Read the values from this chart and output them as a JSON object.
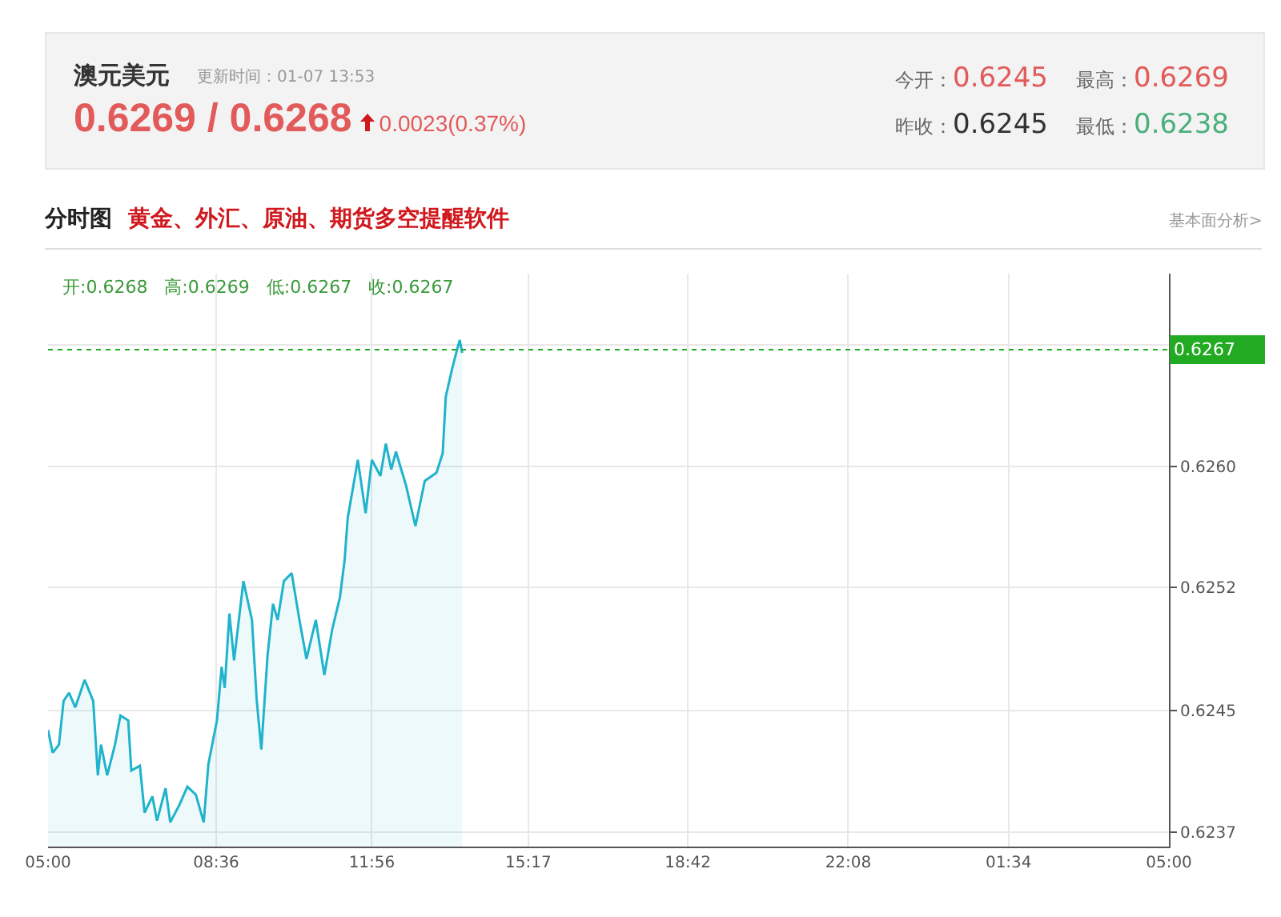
{
  "chart_data": {
    "type": "area",
    "title": "澳元美元",
    "subtitle": "更新时间：01-07 13:53",
    "annotations": [
      "0.6269 / 0.6268",
      "0.0023(0.37%)",
      "今开：0.6245",
      "最高：0.6269",
      "昨收：0.6245",
      "最低：0.6238",
      "分时图",
      "黄金、外汇、原油、期货多空提醒软件",
      "基本面分析>",
      "开:0.6268   高:0.6269   低:0.6267   收:0.6267"
    ],
    "x": [
      "--01-07T05:00",
      "--01-07T05:06",
      "--01-07T05:14",
      "--01-07T05:20",
      "--01-07T05:27",
      "--01-07T05:35",
      "--01-07T05:47",
      "--01-07T05:58",
      "--01-07T06:04",
      "--01-07T06:08",
      "--01-07T06:16",
      "--01-07T06:26",
      "--01-07T06:33",
      "--01-07T06:43",
      "--01-07T06:47",
      "--01-07T06:58",
      "--01-07T07:04",
      "--01-07T07:14",
      "--01-07T07:20",
      "--01-07T07:31",
      "--01-07T07:37",
      "--01-07T07:49",
      "--01-07T07:59",
      "--01-07T08:10",
      "--01-07T08:20",
      "--01-07T08:26",
      "--01-07T08:37",
      "--01-07T08:43",
      "--01-07T08:47",
      "--01-07T08:53",
      "--01-07T08:59",
      "--01-07T09:11",
      "--01-07T09:22",
      "--01-07T09:28",
      "--01-07T09:34",
      "--01-07T09:42",
      "--01-07T09:49",
      "--01-07T09:55",
      "--01-07T10:03",
      "--01-07T10:13",
      "--01-07T10:23",
      "--01-07T10:32",
      "--01-07T10:44",
      "--01-07T10:55",
      "--01-07T11:05",
      "--01-07T11:15",
      "--01-07T11:21",
      "--01-07T11:25",
      "--01-07T11:38",
      "--01-07T11:48",
      "--01-07T11:56",
      "--01-07T12:07",
      "--01-07T12:14",
      "--01-07T12:21",
      "--01-07T12:27",
      "--01-07T12:40",
      "--01-07T12:52",
      "--01-07T13:04",
      "--01-07T13:19",
      "--01-07T13:27",
      "--01-07T13:31",
      "--01-07T13:39",
      "--01-07T13:46",
      "--01-07T13:49",
      "--01-07T13:52"
    ],
    "series": [
      {
        "color": "#1fb3cc",
        "values": [
          0.62435,
          0.62421,
          0.62426,
          0.62453,
          0.62458,
          0.62449,
          0.62466,
          0.62453,
          0.62407,
          0.62426,
          0.62407,
          0.62426,
          0.62444,
          0.62441,
          0.6241,
          0.62413,
          0.62384,
          0.62394,
          0.62379,
          0.62399,
          0.62378,
          0.62389,
          0.624,
          0.62395,
          0.62378,
          0.62414,
          0.62441,
          0.62474,
          0.62461,
          0.62507,
          0.62478,
          0.62527,
          0.62503,
          0.62454,
          0.62423,
          0.62481,
          0.62513,
          0.62503,
          0.62527,
          0.62532,
          0.62503,
          0.62479,
          0.62503,
          0.62469,
          0.62497,
          0.62517,
          0.6254,
          0.62566,
          0.62602,
          0.62569,
          0.62602,
          0.62592,
          0.62612,
          0.62596,
          0.62607,
          0.62586,
          0.62561,
          0.62589,
          0.62594,
          0.62606,
          0.62641,
          0.62658,
          0.62671,
          0.62676,
          0.62668
        ]
      }
    ],
    "xlim": [
      "--01-07T05:00",
      "--01-08T05:00"
    ],
    "xticks": [
      {
        "value": "--01-07T05:00",
        "label": "05:00"
      },
      {
        "value": "--01-07T08:36",
        "label": "08:36"
      },
      {
        "value": "--01-07T11:56",
        "label": "11:56"
      },
      {
        "value": "--01-07T15:17",
        "label": "15:17"
      },
      {
        "value": "--01-07T18:42",
        "label": "18:42"
      },
      {
        "value": "--01-07T22:08",
        "label": "22:08"
      },
      {
        "value": "--01-08T01:34",
        "label": "01:34"
      },
      {
        "value": "--01-08T05:00",
        "label": "05:00"
      }
    ],
    "ylim": [
      0.62363,
      0.62717
    ],
    "yticks": [
      {
        "value": 0.62372,
        "label": "0.6237"
      },
      {
        "value": 0.62447,
        "label": "0.6245"
      },
      {
        "value": 0.62523,
        "label": "0.6252"
      },
      {
        "value": 0.62598,
        "label": "0.6260"
      },
      {
        "value": 0.62673,
        "label": null
      }
    ],
    "ref_lines": [
      {
        "axis": "y",
        "value": 0.6267,
        "label": "0.6267",
        "color": "#22aa22",
        "line_style": "dotted"
      }
    ],
    "grid": true,
    "legend": false,
    "marker": "none",
    "line_style": "solid"
  }
}
